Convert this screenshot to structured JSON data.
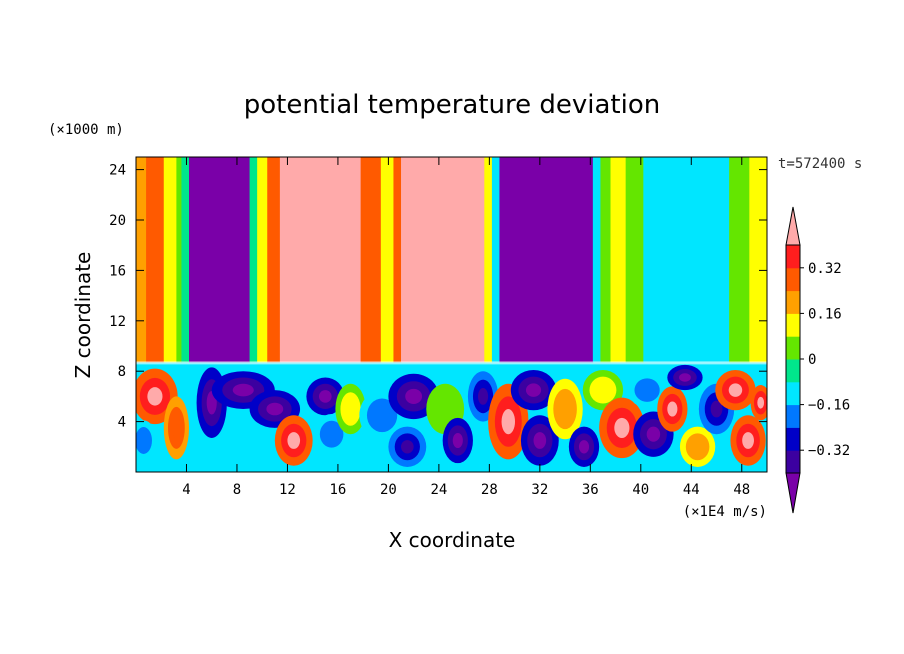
{
  "chart_data": {
    "type": "heatmap",
    "title": "potential temperature deviation",
    "xlabel": "X coordinate",
    "ylabel": "Z coordinate",
    "x_unit": "(×1E4 m/s)",
    "y_unit": "(×1000 m)",
    "time_label": "t=572400 s",
    "xlim": [
      0,
      50
    ],
    "ylim": [
      0,
      25
    ],
    "x_ticks": [
      4,
      8,
      12,
      16,
      20,
      24,
      28,
      32,
      36,
      40,
      44,
      48
    ],
    "y_ticks": [
      4,
      8,
      12,
      16,
      20,
      24
    ],
    "colorbar": {
      "levels": [
        -0.4,
        -0.32,
        -0.24,
        -0.16,
        -0.08,
        0,
        0.08,
        0.16,
        0.24,
        0.32,
        0.4
      ],
      "labels": [
        "0.32",
        "0.16",
        "0",
        "−0.16",
        "−0.32"
      ],
      "label_values": [
        0.32,
        0.16,
        0,
        -0.16,
        -0.32
      ],
      "colors": [
        "#7a00a8",
        "#3c00a0",
        "#0000c8",
        "#0078ff",
        "#00e6ff",
        "#00e68c",
        "#64e600",
        "#ffff00",
        "#ffa000",
        "#ff5a00",
        "#ff1e1e",
        "#ffaaaa"
      ],
      "extend": "both"
    },
    "upper_layer": {
      "z_range": [
        8.7,
        25
      ],
      "columns": [
        {
          "x0": 0,
          "x1": 0.8,
          "value": 0.2
        },
        {
          "x0": 0.8,
          "x1": 2.2,
          "value": 0.28
        },
        {
          "x0": 2.2,
          "x1": 3.2,
          "value": 0.12
        },
        {
          "x0": 3.2,
          "x1": 3.6,
          "value": 0.06
        },
        {
          "x0": 3.6,
          "x1": 4.2,
          "value": -0.06
        },
        {
          "x0": 4.2,
          "x1": 9.0,
          "value": -0.45
        },
        {
          "x0": 9.0,
          "x1": 9.6,
          "value": -0.06
        },
        {
          "x0": 9.6,
          "x1": 10.4,
          "value": 0.14
        },
        {
          "x0": 10.4,
          "x1": 11.4,
          "value": 0.28
        },
        {
          "x0": 11.4,
          "x1": 17.8,
          "value": 0.45
        },
        {
          "x0": 17.8,
          "x1": 19.4,
          "value": 0.3
        },
        {
          "x0": 19.4,
          "x1": 20.4,
          "value": 0.14
        },
        {
          "x0": 20.4,
          "x1": 21.0,
          "value": 0.3
        },
        {
          "x0": 21.0,
          "x1": 27.6,
          "value": 0.45
        },
        {
          "x0": 27.6,
          "x1": 28.2,
          "value": 0.14
        },
        {
          "x0": 28.2,
          "x1": 28.8,
          "value": -0.12
        },
        {
          "x0": 28.8,
          "x1": 36.2,
          "value": -0.45
        },
        {
          "x0": 36.2,
          "x1": 36.8,
          "value": -0.16
        },
        {
          "x0": 36.8,
          "x1": 37.6,
          "value": 0.02
        },
        {
          "x0": 37.6,
          "x1": 38.8,
          "value": 0.14
        },
        {
          "x0": 38.8,
          "x1": 40.2,
          "value": 0.05
        },
        {
          "x0": 40.2,
          "x1": 47.0,
          "value": -0.1
        },
        {
          "x0": 47.0,
          "x1": 48.6,
          "value": 0.0
        },
        {
          "x0": 48.6,
          "x1": 50,
          "value": 0.14
        }
      ]
    },
    "lower_layer": {
      "z_range": [
        0,
        8.7
      ],
      "description_free": true,
      "blobs": [
        {
          "x": 1.5,
          "z": 6.0,
          "rx": 1.8,
          "rz": 2.2,
          "value": 0.45
        },
        {
          "x": 0.6,
          "z": 2.5,
          "rx": 1.0,
          "rz": 1.6,
          "value": -0.2
        },
        {
          "x": 3.2,
          "z": 3.5,
          "rx": 1.0,
          "rz": 2.5,
          "value": 0.3
        },
        {
          "x": 6.0,
          "z": 5.5,
          "rx": 1.2,
          "rz": 2.8,
          "value": -0.45
        },
        {
          "x": 8.5,
          "z": 6.5,
          "rx": 2.5,
          "rz": 1.5,
          "value": -0.45
        },
        {
          "x": 11.0,
          "z": 5.0,
          "rx": 2.0,
          "rz": 1.5,
          "value": -0.45
        },
        {
          "x": 12.5,
          "z": 2.5,
          "rx": 1.5,
          "rz": 2.0,
          "value": 0.45
        },
        {
          "x": 15.0,
          "z": 6.0,
          "rx": 1.5,
          "rz": 1.5,
          "value": -0.45
        },
        {
          "x": 15.5,
          "z": 3.0,
          "rx": 1.4,
          "rz": 1.6,
          "value": -0.24
        },
        {
          "x": 17.0,
          "z": 5.0,
          "rx": 1.2,
          "rz": 2.0,
          "value": 0.1
        },
        {
          "x": 19.5,
          "z": 4.5,
          "rx": 1.8,
          "rz": 2.0,
          "value": -0.2
        },
        {
          "x": 22.0,
          "z": 6.0,
          "rx": 2.0,
          "rz": 1.8,
          "value": -0.45
        },
        {
          "x": 21.5,
          "z": 2.0,
          "rx": 1.5,
          "rz": 1.6,
          "value": -0.36
        },
        {
          "x": 24.5,
          "z": 5.0,
          "rx": 1.5,
          "rz": 2.0,
          "value": 0.05
        },
        {
          "x": 25.5,
          "z": 2.5,
          "rx": 1.2,
          "rz": 1.8,
          "value": -0.45
        },
        {
          "x": 27.5,
          "z": 6.0,
          "rx": 1.2,
          "rz": 2.0,
          "value": -0.36
        },
        {
          "x": 29.5,
          "z": 4.0,
          "rx": 1.6,
          "rz": 3.0,
          "value": 0.45
        },
        {
          "x": 31.5,
          "z": 6.5,
          "rx": 1.8,
          "rz": 1.6,
          "value": -0.45
        },
        {
          "x": 32.0,
          "z": 2.5,
          "rx": 1.5,
          "rz": 2.0,
          "value": -0.45
        },
        {
          "x": 34.0,
          "z": 5.0,
          "rx": 1.4,
          "rz": 2.4,
          "value": 0.2
        },
        {
          "x": 35.5,
          "z": 2.0,
          "rx": 1.2,
          "rz": 1.6,
          "value": -0.45
        },
        {
          "x": 37.0,
          "z": 6.5,
          "rx": 1.6,
          "rz": 1.6,
          "value": 0.1
        },
        {
          "x": 38.5,
          "z": 3.5,
          "rx": 1.8,
          "rz": 2.4,
          "value": 0.4
        },
        {
          "x": 40.5,
          "z": 6.5,
          "rx": 1.5,
          "rz": 1.4,
          "value": -0.2
        },
        {
          "x": 41.0,
          "z": 3.0,
          "rx": 1.6,
          "rz": 1.8,
          "value": -0.45
        },
        {
          "x": 42.5,
          "z": 5.0,
          "rx": 1.2,
          "rz": 1.8,
          "value": 0.45
        },
        {
          "x": 43.5,
          "z": 7.5,
          "rx": 1.4,
          "rz": 1.0,
          "value": -0.45
        },
        {
          "x": 44.5,
          "z": 2.0,
          "rx": 1.4,
          "rz": 1.6,
          "value": 0.2
        },
        {
          "x": 46.0,
          "z": 5.0,
          "rx": 1.4,
          "rz": 2.0,
          "value": -0.36
        },
        {
          "x": 47.5,
          "z": 6.5,
          "rx": 1.6,
          "rz": 1.6,
          "value": 0.45
        },
        {
          "x": 48.5,
          "z": 2.5,
          "rx": 1.4,
          "rz": 2.0,
          "value": 0.45
        },
        {
          "x": 49.5,
          "z": 5.5,
          "rx": 0.8,
          "rz": 1.4,
          "value": 0.45
        }
      ]
    }
  }
}
